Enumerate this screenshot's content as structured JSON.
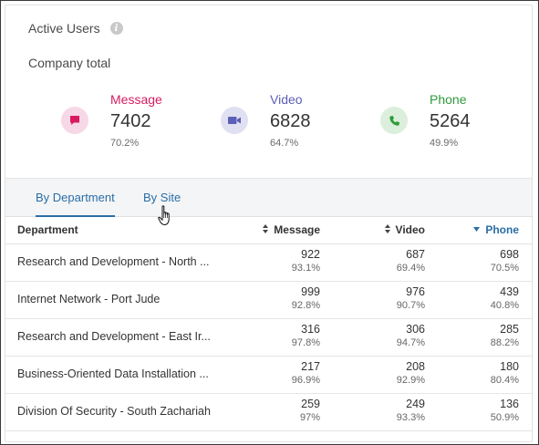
{
  "header": {
    "title": "Active Users",
    "info_icon": "info-icon"
  },
  "subtitle": "Company total",
  "stats": [
    {
      "label": "Message",
      "value": "7402",
      "pct": "70.2%",
      "color": "#d81b60",
      "bg": "#f7d8e6",
      "icon": "message-icon"
    },
    {
      "label": "Video",
      "value": "6828",
      "pct": "64.7%",
      "color": "#5c5fb5",
      "bg": "#e0e0f3",
      "icon": "video-camera-icon"
    },
    {
      "label": "Phone",
      "value": "5264",
      "pct": "49.9%",
      "color": "#2e9b3b",
      "bg": "#dbefdc",
      "icon": "phone-icon"
    }
  ],
  "tabs": [
    {
      "label": "By Department",
      "active": true
    },
    {
      "label": "By Site",
      "active": false
    }
  ],
  "table": {
    "columns": [
      "Department",
      "Message",
      "Video",
      "Phone"
    ],
    "sorted_column": "Phone",
    "rows": [
      {
        "dept": "Research and Development - North ...",
        "message": "922",
        "message_pct": "93.1%",
        "video": "687",
        "video_pct": "69.4%",
        "phone": "698",
        "phone_pct": "70.5%"
      },
      {
        "dept": "Internet Network - Port Jude",
        "message": "999",
        "message_pct": "92.8%",
        "video": "976",
        "video_pct": "90.7%",
        "phone": "439",
        "phone_pct": "40.8%"
      },
      {
        "dept": "Research and Development - East Ir...",
        "message": "316",
        "message_pct": "97.8%",
        "video": "306",
        "video_pct": "94.7%",
        "phone": "285",
        "phone_pct": "88.2%"
      },
      {
        "dept": "Business-Oriented Data Installation ...",
        "message": "217",
        "message_pct": "96.9%",
        "video": "208",
        "video_pct": "92.9%",
        "phone": "180",
        "phone_pct": "80.4%"
      },
      {
        "dept": "Division Of Security - South Zachariah",
        "message": "259",
        "message_pct": "97%",
        "video": "249",
        "video_pct": "93.3%",
        "phone": "136",
        "phone_pct": "50.9%"
      }
    ]
  }
}
